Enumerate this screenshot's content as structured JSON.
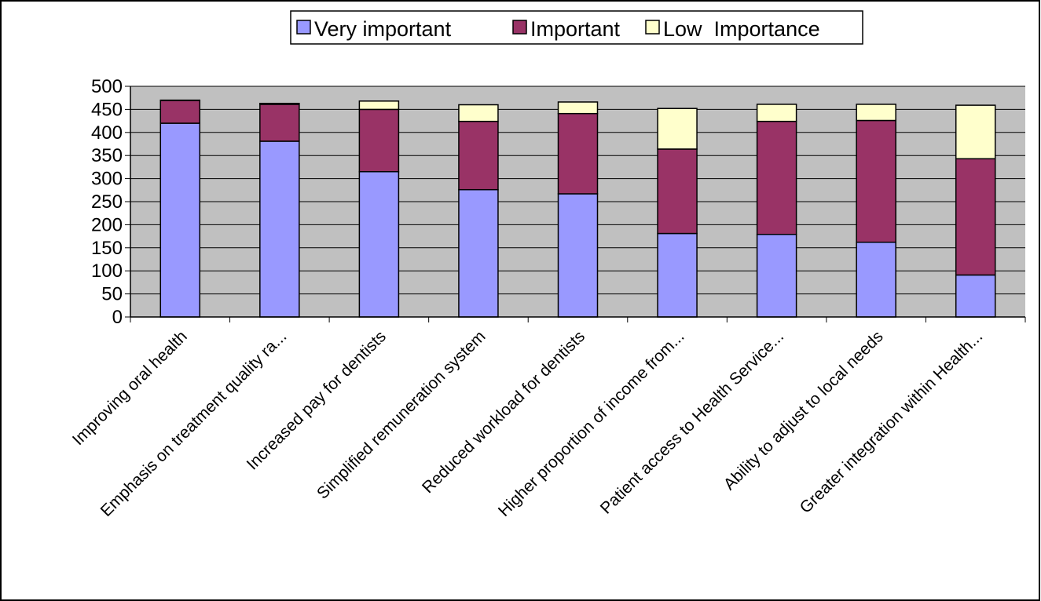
{
  "chart_data": {
    "type": "bar",
    "stacked": true,
    "categories": [
      "Improving oral health",
      "Emphasis on treatment quality ra...",
      "Increased pay for dentists",
      "Simplified remuneration system",
      "Reduced workload for dentists",
      "Higher proportion of income from...",
      "Patient access to Health Service...",
      "Ability to adjust to local needs",
      "Greater integration within Health..."
    ],
    "series": [
      {
        "name": "Very important",
        "color": "#9999ff",
        "values": [
          420,
          381,
          315,
          276,
          267,
          181,
          179,
          162,
          91
        ]
      },
      {
        "name": "Important",
        "color": "#993366",
        "values": [
          49,
          80,
          135,
          148,
          174,
          183,
          245,
          264,
          252
        ]
      },
      {
        "name": "Low  Importance",
        "color": "#ffffcc",
        "values": [
          1,
          2,
          18,
          36,
          25,
          88,
          37,
          35,
          116
        ]
      }
    ],
    "yticks": [
      "0",
      "50",
      "100",
      "150",
      "200",
      "250",
      "300",
      "350",
      "400",
      "450",
      "500"
    ],
    "ylim": [
      0,
      500
    ],
    "title": "",
    "xlabel": "",
    "ylabel": "",
    "grid": true,
    "legend_position": "top",
    "plot_background": "#c0c0c0"
  }
}
